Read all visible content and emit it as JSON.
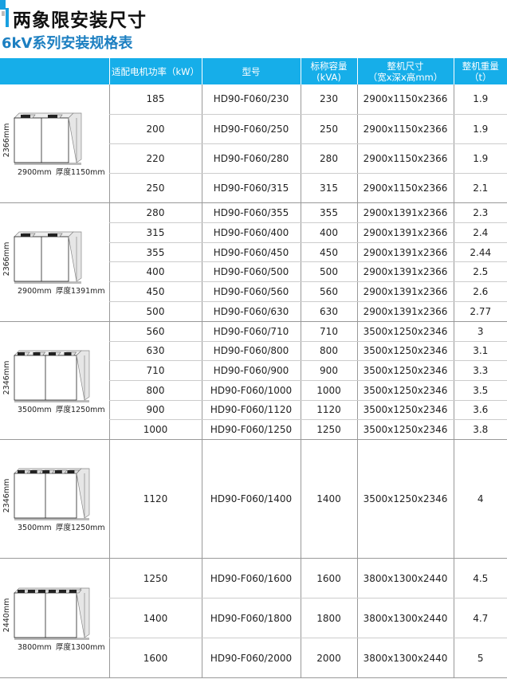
{
  "title": "两象限安装尺寸",
  "subtitle": "6kV系列安装规格表",
  "headers": [
    "",
    "适配电机功率（kW）",
    "型号",
    "标称容量\n(kVA)",
    "整机尺寸\n（宽x深x高mm）",
    "整机重量\n（t）"
  ],
  "groups": [
    {
      "height_label": "2366mm",
      "width_label": "2900mm",
      "depth_label": "厚度1150mm",
      "tops": 2,
      "rows": [
        [
          "185",
          "HD90-F060/230",
          "230",
          "2900x1150x2366",
          "1.9"
        ],
        [
          "200",
          "HD90-F060/250",
          "250",
          "2900x1150x2366",
          "1.9"
        ],
        [
          "220",
          "HD90-F060/280",
          "280",
          "2900x1150x2366",
          "1.9"
        ],
        [
          "250",
          "HD90-F060/315",
          "315",
          "2900x1150x2366",
          "2.1"
        ]
      ]
    },
    {
      "height_label": "2366mm",
      "width_label": "2900mm",
      "depth_label": "厚度1391mm",
      "tops": 2,
      "rows": [
        [
          "280",
          "HD90-F060/355",
          "355",
          "2900x1391x2366",
          "2.3"
        ],
        [
          "315",
          "HD90-F060/400",
          "400",
          "2900x1391x2366",
          "2.4"
        ],
        [
          "355",
          "HD90-F060/450",
          "450",
          "2900x1391x2366",
          "2.44"
        ],
        [
          "400",
          "HD90-F060/500",
          "500",
          "2900x1391x2366",
          "2.5"
        ],
        [
          "450",
          "HD90-F060/560",
          "560",
          "2900x1391x2366",
          "2.6"
        ],
        [
          "500",
          "HD90-F060/630",
          "630",
          "2900x1391x2366",
          "2.77"
        ]
      ]
    },
    {
      "height_label": "2346mm",
      "width_label": "3500mm",
      "depth_label": "厚度1250mm",
      "tops": 4,
      "rows": [
        [
          "560",
          "HD90-F060/710",
          "710",
          "3500x1250x2346",
          "3"
        ],
        [
          "630",
          "HD90-F060/800",
          "800",
          "3500x1250x2346",
          "3.1"
        ],
        [
          "710",
          "HD90-F060/900",
          "900",
          "3500x1250x2346",
          "3.3"
        ],
        [
          "800",
          "HD90-F060/1000",
          "1000",
          "3500x1250x2346",
          "3.5"
        ],
        [
          "900",
          "HD90-F060/1120",
          "1120",
          "3500x1250x2346",
          "3.6"
        ],
        [
          "1000",
          "HD90-F060/1250",
          "1250",
          "3500x1250x2346",
          "3.8"
        ]
      ]
    },
    {
      "height_label": "2346mm",
      "width_label": "3500mm",
      "depth_label": "厚度1250mm",
      "tops": 5,
      "rows": [
        [
          "1120",
          "HD90-F060/1400",
          "1400",
          "3500x1250x2346",
          "4"
        ]
      ]
    },
    {
      "height_label": "2440mm",
      "width_label": "3800mm",
      "depth_label": "厚度1300mm",
      "tops": 6,
      "rows": [
        [
          "1250",
          "HD90-F060/1600",
          "1600",
          "3800x1300x2440",
          "4.5"
        ],
        [
          "1400",
          "HD90-F060/1800",
          "1800",
          "3800x1300x2440",
          "4.7"
        ],
        [
          "1600",
          "HD90-F060/2000",
          "2000",
          "3800x1300x2440",
          "5"
        ]
      ]
    }
  ]
}
